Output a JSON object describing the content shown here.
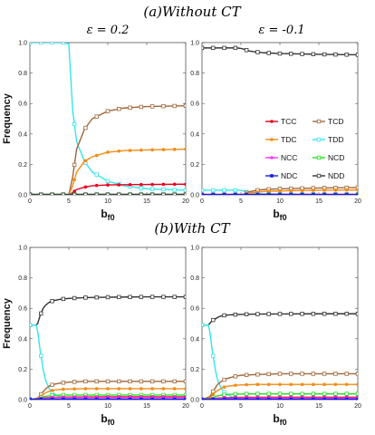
{
  "headers": {
    "top": "(a)Without CT",
    "bottom": "(b)With CT",
    "eps_left": "ε = 0.2",
    "eps_right": "ε = -0.1"
  },
  "colors": {
    "TCC": "#e8001c",
    "TCD": "#a0673a",
    "TDC": "#f28c16",
    "TDD": "#33e6ee",
    "NCC": "#ff33ff",
    "NCD": "#22dd22",
    "NDC": "#1a1aee",
    "NDD": "#333333"
  },
  "chart_data": [
    {
      "type": "line",
      "panel": "a-left",
      "xlabel": "b_f0",
      "ylabel": "Frequency",
      "xlim": [
        0,
        20
      ],
      "ylim": [
        0,
        1.0
      ],
      "xticks": [
        0,
        5,
        10,
        15,
        20
      ],
      "yticks": [
        0.0,
        0.2,
        0.4,
        0.6,
        0.8,
        1.0
      ],
      "series": [
        {
          "name": "TDD",
          "x": [
            0,
            4.5,
            5,
            5.5,
            6,
            7,
            8,
            10,
            12,
            15,
            20
          ],
          "y": [
            1.0,
            1.0,
            0.99,
            0.55,
            0.35,
            0.22,
            0.15,
            0.09,
            0.06,
            0.04,
            0.03
          ]
        },
        {
          "name": "TCD",
          "x": [
            0,
            5,
            5.5,
            6,
            7,
            8,
            10,
            12,
            15,
            20
          ],
          "y": [
            0,
            0,
            0.12,
            0.3,
            0.43,
            0.5,
            0.55,
            0.57,
            0.58,
            0.585
          ]
        },
        {
          "name": "TDC",
          "x": [
            0,
            5,
            5.5,
            6,
            7,
            8,
            10,
            12,
            15,
            20
          ],
          "y": [
            0,
            0,
            0.06,
            0.15,
            0.22,
            0.25,
            0.28,
            0.29,
            0.295,
            0.3
          ]
        },
        {
          "name": "TCC",
          "x": [
            0,
            5,
            5.5,
            6,
            7,
            8,
            10,
            15,
            20
          ],
          "y": [
            0,
            0,
            0.015,
            0.035,
            0.05,
            0.06,
            0.065,
            0.068,
            0.07
          ]
        },
        {
          "name": "NDC",
          "x": [
            0,
            20
          ],
          "y": [
            0.002,
            0.002
          ]
        },
        {
          "name": "NCC",
          "x": [
            0,
            20
          ],
          "y": [
            0.005,
            0.005
          ]
        },
        {
          "name": "NCD",
          "x": [
            0,
            20
          ],
          "y": [
            0.003,
            0.003
          ]
        },
        {
          "name": "NDD",
          "x": [
            0,
            20
          ],
          "y": [
            0.001,
            0.001
          ]
        }
      ]
    },
    {
      "type": "line",
      "panel": "a-right",
      "xlabel": "b_f0",
      "ylabel": "",
      "xlim": [
        0,
        20
      ],
      "ylim": [
        0,
        1.0
      ],
      "xticks": [
        0,
        5,
        10,
        15,
        20
      ],
      "yticks": [
        0.0,
        0.2,
        0.4,
        0.6,
        0.8,
        1.0
      ],
      "legend": {
        "placement": "center-right",
        "entries": [
          "TCC",
          "TCD",
          "TDC",
          "TDD",
          "NCC",
          "NCD",
          "NDC",
          "NDD"
        ]
      },
      "series": [
        {
          "name": "NDD",
          "x": [
            0,
            4.5,
            5,
            5.5,
            6,
            7,
            8,
            10,
            15,
            20
          ],
          "y": [
            0.965,
            0.965,
            0.962,
            0.955,
            0.945,
            0.938,
            0.933,
            0.928,
            0.923,
            0.92
          ]
        },
        {
          "name": "TDD",
          "x": [
            0,
            4.5,
            5,
            5.5,
            6,
            7,
            8,
            10,
            15,
            20
          ],
          "y": [
            0.03,
            0.03,
            0.03,
            0.022,
            0.015,
            0.01,
            0.008,
            0.006,
            0.004,
            0.003
          ]
        },
        {
          "name": "TCD",
          "x": [
            0,
            5,
            5.5,
            6,
            7,
            8,
            10,
            15,
            20
          ],
          "y": [
            0,
            0,
            0.008,
            0.02,
            0.03,
            0.035,
            0.04,
            0.045,
            0.048
          ]
        },
        {
          "name": "TDC",
          "x": [
            0,
            5,
            5.5,
            6,
            7,
            8,
            10,
            15,
            20
          ],
          "y": [
            0,
            0,
            0.005,
            0.012,
            0.018,
            0.022,
            0.026,
            0.03,
            0.032
          ]
        },
        {
          "name": "TCC",
          "x": [
            0,
            20
          ],
          "y": [
            0.002,
            0.002
          ]
        },
        {
          "name": "NCD",
          "x": [
            0,
            20
          ],
          "y": [
            0.003,
            0.003
          ]
        },
        {
          "name": "NCC",
          "x": [
            0,
            20
          ],
          "y": [
            0.004,
            0.004
          ]
        },
        {
          "name": "NDC",
          "x": [
            0,
            20
          ],
          "y": [
            0.002,
            0.002
          ]
        }
      ]
    },
    {
      "type": "line",
      "panel": "b-left",
      "xlabel": "b_f0",
      "ylabel": "Frequency",
      "xlim": [
        0,
        20
      ],
      "ylim": [
        0,
        1.0
      ],
      "xticks": [
        0,
        5,
        10,
        15,
        20
      ],
      "yticks": [
        0.0,
        0.2,
        0.4,
        0.6,
        0.8,
        1.0
      ],
      "series": [
        {
          "name": "NDD",
          "x": [
            0,
            0.8,
            1,
            1.3,
            1.7,
            2,
            2.5,
            3,
            4,
            5,
            7,
            10,
            15,
            20
          ],
          "y": [
            0.49,
            0.49,
            0.5,
            0.55,
            0.6,
            0.62,
            0.64,
            0.65,
            0.66,
            0.665,
            0.67,
            0.673,
            0.675,
            0.675
          ]
        },
        {
          "name": "TDD",
          "x": [
            0,
            0.8,
            1,
            1.3,
            1.7,
            2,
            2.5,
            3,
            4,
            5,
            7,
            10,
            20
          ],
          "y": [
            0.49,
            0.49,
            0.45,
            0.33,
            0.2,
            0.13,
            0.07,
            0.04,
            0.015,
            0.006,
            0.002,
            0.001,
            0.0
          ]
        },
        {
          "name": "TCD",
          "x": [
            0,
            1,
            1.5,
            2,
            2.5,
            3,
            4,
            5,
            7,
            10,
            15,
            20
          ],
          "y": [
            0,
            0.01,
            0.04,
            0.07,
            0.09,
            0.1,
            0.11,
            0.115,
            0.12,
            0.12,
            0.12,
            0.12
          ]
        },
        {
          "name": "TDC",
          "x": [
            0,
            1,
            1.5,
            2,
            2.5,
            3,
            4,
            5,
            7,
            10,
            15,
            20
          ],
          "y": [
            0,
            0.005,
            0.025,
            0.045,
            0.055,
            0.062,
            0.068,
            0.07,
            0.072,
            0.072,
            0.072,
            0.072
          ]
        },
        {
          "name": "NCD",
          "x": [
            0,
            1,
            1.5,
            2,
            3,
            4,
            5,
            7,
            10,
            20
          ],
          "y": [
            0,
            0.005,
            0.015,
            0.022,
            0.028,
            0.03,
            0.03,
            0.03,
            0.03,
            0.03
          ]
        },
        {
          "name": "TCC",
          "x": [
            0,
            1,
            2,
            3,
            5,
            10,
            20
          ],
          "y": [
            0,
            0.005,
            0.012,
            0.015,
            0.017,
            0.018,
            0.018
          ]
        },
        {
          "name": "NCC",
          "x": [
            0,
            1,
            2,
            3,
            5,
            10,
            20
          ],
          "y": [
            0,
            0.004,
            0.01,
            0.012,
            0.013,
            0.013,
            0.013
          ]
        },
        {
          "name": "NDC",
          "x": [
            0,
            20
          ],
          "y": [
            0.003,
            0.003
          ]
        }
      ]
    },
    {
      "type": "line",
      "panel": "b-right",
      "xlabel": "b_f0",
      "ylabel": "",
      "xlim": [
        0,
        20
      ],
      "ylim": [
        0,
        1.0
      ],
      "xticks": [
        0,
        5,
        10,
        15,
        20
      ],
      "yticks": [
        0.0,
        0.2,
        0.4,
        0.6,
        0.8,
        1.0
      ],
      "series": [
        {
          "name": "NDD",
          "x": [
            0,
            0.8,
            1,
            1.3,
            1.7,
            2,
            2.5,
            3,
            4,
            5,
            7,
            10,
            15,
            20
          ],
          "y": [
            0.49,
            0.49,
            0.5,
            0.52,
            0.53,
            0.54,
            0.55,
            0.555,
            0.558,
            0.56,
            0.562,
            0.563,
            0.564,
            0.564
          ]
        },
        {
          "name": "TDD",
          "x": [
            0,
            0.8,
            1,
            1.3,
            1.7,
            2,
            2.5,
            3,
            4,
            5,
            7,
            10,
            20
          ],
          "y": [
            0.49,
            0.49,
            0.45,
            0.33,
            0.2,
            0.13,
            0.07,
            0.04,
            0.015,
            0.006,
            0.002,
            0.001,
            0.0
          ]
        },
        {
          "name": "TCD",
          "x": [
            0,
            1,
            1.5,
            2,
            2.5,
            3,
            4,
            5,
            7,
            10,
            15,
            20
          ],
          "y": [
            0,
            0.02,
            0.06,
            0.1,
            0.12,
            0.135,
            0.15,
            0.16,
            0.165,
            0.17,
            0.17,
            0.17
          ]
        },
        {
          "name": "TDC",
          "x": [
            0,
            1,
            1.5,
            2,
            2.5,
            3,
            4,
            5,
            7,
            10,
            15,
            20
          ],
          "y": [
            0,
            0.01,
            0.04,
            0.06,
            0.075,
            0.085,
            0.093,
            0.097,
            0.1,
            0.1,
            0.1,
            0.1
          ]
        },
        {
          "name": "NCD",
          "x": [
            0,
            1,
            1.5,
            2,
            3,
            4,
            5,
            7,
            10,
            20
          ],
          "y": [
            0,
            0.005,
            0.015,
            0.025,
            0.033,
            0.036,
            0.037,
            0.038,
            0.038,
            0.038
          ]
        },
        {
          "name": "TCC",
          "x": [
            0,
            1,
            2,
            3,
            5,
            10,
            20
          ],
          "y": [
            0,
            0.004,
            0.01,
            0.013,
            0.015,
            0.016,
            0.016
          ]
        },
        {
          "name": "NCC",
          "x": [
            0,
            1,
            2,
            3,
            5,
            10,
            20
          ],
          "y": [
            0,
            0.003,
            0.008,
            0.01,
            0.011,
            0.011,
            0.011
          ]
        },
        {
          "name": "NDC",
          "x": [
            0,
            20
          ],
          "y": [
            0.003,
            0.003
          ]
        }
      ]
    }
  ]
}
